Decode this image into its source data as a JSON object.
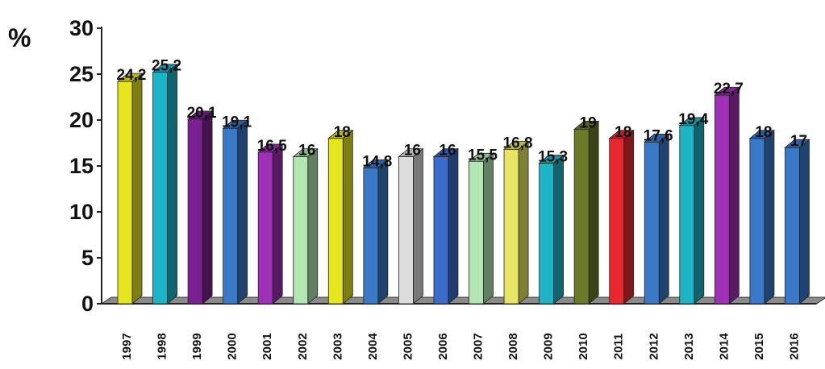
{
  "chart_data": {
    "type": "bar",
    "ylabel": "%",
    "xlabel": "",
    "title": "",
    "ylim": [
      0,
      30
    ],
    "yticks": [
      0,
      5,
      10,
      15,
      20,
      25,
      30
    ],
    "grid": false,
    "legend": "none",
    "categories": [
      "1997",
      "1998",
      "1999",
      "2000",
      "2001",
      "2002",
      "2003",
      "2004",
      "2005",
      "2006",
      "2007",
      "2008",
      "2009",
      "2010",
      "2011",
      "2012",
      "2013",
      "2014",
      "2015",
      "2016"
    ],
    "values": [
      24.2,
      25.2,
      20.1,
      19.1,
      16.5,
      16,
      18,
      14.8,
      16,
      16,
      15.5,
      16.8,
      15.3,
      19,
      18,
      17.6,
      19.4,
      22.7,
      18,
      17
    ],
    "data_labels": [
      "24,2",
      "25,2",
      "20,1",
      "19,1",
      "16,5",
      "16",
      "18",
      "14,8",
      "16",
      "16",
      "15,5",
      "16,8",
      "15,3",
      "19",
      "18",
      "17,6",
      "19,4",
      "22,7",
      "18",
      "17"
    ],
    "colors": [
      "#e6e61e",
      "#1eb4c8",
      "#7a2090",
      "#3a78c8",
      "#a030b8",
      "#b4e6b4",
      "#e6e61e",
      "#3a78c8",
      "#dcdcdc",
      "#3a6ccc",
      "#b4e6b4",
      "#e6e664",
      "#1eb4c8",
      "#6a7a28",
      "#e82830",
      "#3a78c8",
      "#1eb4c8",
      "#a030b8",
      "#3a78c8",
      "#3a78c8"
    ],
    "label_colors": [
      "#111111",
      "#111111",
      "#111111",
      "#111111",
      "#111111",
      "#111111",
      "#111111",
      "#111111",
      "#111111",
      "#111111",
      "#111111",
      "#111111",
      "#111111",
      "#111111",
      "#111111",
      "#111111",
      "#111111",
      "#111111",
      "#111111",
      "#e82830"
    ]
  }
}
